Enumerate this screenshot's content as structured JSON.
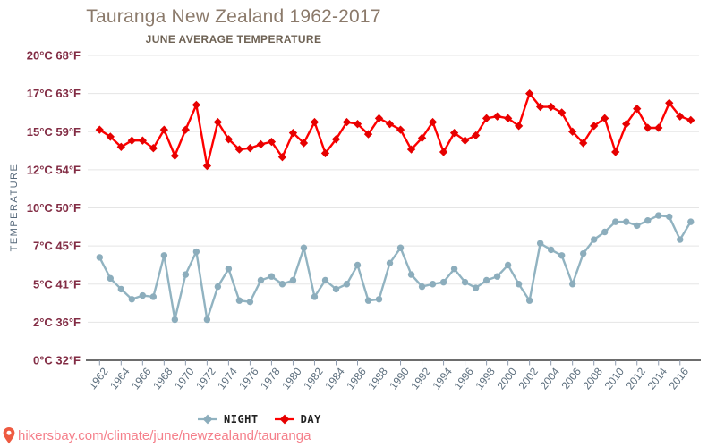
{
  "header": {
    "title": "Tauranga New Zealand 1962-2017",
    "subtitle": "JUNE AVERAGE TEMPERATURE"
  },
  "legend": {
    "night_label": "NIGHT",
    "day_label": "DAY"
  },
  "footer": {
    "url": "hikersbay.com/climate/june/newzealand/tauranga"
  },
  "colors": {
    "day": "#fe0000",
    "day_marker": "#e60000",
    "night": "#91b3c1",
    "night_marker": "#8cadbc",
    "grid": "#e5e5e5",
    "axis": "#3d3d3d",
    "tick": "#8e9bae",
    "y_label": "#822c44",
    "x_label": "#5d6f7e",
    "axis_title": "#56687a",
    "title": "#8b7a6b",
    "subtitle": "#6e6254",
    "footer": "#f5808b",
    "legend_text": "#222222"
  },
  "chart_data": {
    "type": "line",
    "title": "Tauranga New Zealand 1962-2017",
    "subtitle": "JUNE AVERAGE TEMPERATURE",
    "grid": "horizontal-only",
    "legend_position": "bottom",
    "y_axis": {
      "title": "TEMPERATURE",
      "ticks": [
        {
          "c": 20,
          "label": "20°C 68°F"
        },
        {
          "c": 17,
          "label": "17°C 63°F"
        },
        {
          "c": 15,
          "label": "15°C 59°F"
        },
        {
          "c": 12,
          "label": "12°C 54°F"
        },
        {
          "c": 10,
          "label": "10°C 50°F"
        },
        {
          "c": 7,
          "label": "7°C 45°F"
        },
        {
          "c": 5,
          "label": "5°C 41°F"
        },
        {
          "c": 2,
          "label": "2°C 36°F"
        },
        {
          "c": 0,
          "label": "0°C 32°F"
        }
      ]
    },
    "x_axis": {
      "tick_years": [
        1962,
        1964,
        1966,
        1968,
        1970,
        1972,
        1974,
        1976,
        1978,
        1980,
        1982,
        1984,
        1986,
        1988,
        1990,
        1992,
        1994,
        1996,
        1998,
        2000,
        2002,
        2004,
        2006,
        2008,
        2010,
        2012,
        2014,
        2016
      ]
    },
    "years": [
      1962,
      1963,
      1964,
      1965,
      1966,
      1967,
      1968,
      1969,
      1970,
      1971,
      1972,
      1973,
      1974,
      1975,
      1976,
      1977,
      1978,
      1979,
      1980,
      1981,
      1982,
      1983,
      1984,
      1985,
      1986,
      1987,
      1988,
      1989,
      1990,
      1991,
      1992,
      1993,
      1994,
      1995,
      1996,
      1997,
      1998,
      1999,
      2000,
      2001,
      2002,
      2003,
      2004,
      2005,
      2006,
      2007,
      2008,
      2009,
      2010,
      2011,
      2012,
      2013,
      2014,
      2015,
      2016,
      2017
    ],
    "series": [
      {
        "name": "NIGHT",
        "marker": "circle",
        "unit": "°C",
        "values": [
          6.4,
          5.3,
          4.6,
          3.8,
          4.1,
          4.0,
          6.5,
          2.2,
          5.5,
          6.7,
          2.2,
          4.8,
          5.8,
          3.7,
          3.6,
          5.2,
          5.4,
          5.0,
          5.2,
          6.9,
          4.0,
          5.2,
          4.6,
          5.0,
          6.0,
          3.7,
          3.8,
          6.1,
          6.9,
          5.5,
          4.8,
          5.0,
          5.1,
          5.8,
          5.1,
          4.7,
          5.2,
          5.4,
          6.0,
          5.0,
          3.7,
          7.2,
          6.8,
          6.5,
          5.0,
          6.6,
          7.5,
          8.1,
          8.9,
          8.9,
          8.6,
          9.0,
          9.4,
          9.3,
          7.5,
          8.9
        ]
      },
      {
        "name": "DAY",
        "marker": "diamond",
        "unit": "°C",
        "values": [
          15.1,
          14.6,
          13.8,
          14.3,
          14.3,
          13.7,
          15.1,
          13.1,
          15.1,
          16.4,
          12.3,
          15.5,
          14.4,
          13.6,
          13.7,
          14.0,
          14.2,
          13.0,
          14.9,
          14.1,
          15.5,
          13.3,
          14.4,
          15.5,
          15.4,
          14.8,
          15.7,
          15.4,
          15.1,
          13.6,
          14.5,
          15.5,
          13.4,
          14.9,
          14.3,
          14.7,
          15.7,
          15.8,
          15.7,
          15.3,
          17.0,
          16.3,
          16.3,
          16.0,
          15.0,
          14.1,
          15.3,
          15.7,
          13.4,
          15.4,
          16.2,
          15.2,
          15.2,
          16.5,
          15.8,
          15.6
        ]
      }
    ]
  }
}
